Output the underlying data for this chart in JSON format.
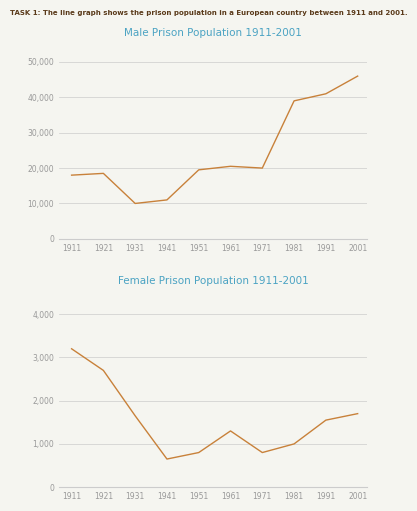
{
  "task_label": "TASK 1: The line graph shows the prison population in a European country between 1911 and 2001.",
  "years": [
    1911,
    1921,
    1931,
    1941,
    1951,
    1961,
    1971,
    1981,
    1991,
    2001
  ],
  "male_values": [
    18000,
    18500,
    10000,
    11000,
    19500,
    20500,
    20000,
    39000,
    41000,
    46000
  ],
  "female_values": [
    3200,
    2700,
    1650,
    650,
    800,
    1300,
    800,
    1000,
    1550,
    1700
  ],
  "male_title": "Male Prison Population 1911-2001",
  "female_title": "Female Prison Population 1911-2001",
  "line_color": "#C8813A",
  "title_color": "#4BA3C3",
  "task_label_color": "#5a3a1a",
  "male_ylim": [
    0,
    55000
  ],
  "male_yticks": [
    0,
    10000,
    20000,
    30000,
    40000,
    50000
  ],
  "female_ylim": [
    0,
    4500
  ],
  "female_yticks": [
    0,
    1000,
    2000,
    3000,
    4000
  ],
  "bg_color": "#f5f5f0",
  "grid_color": "#cccccc",
  "tick_color": "#999999"
}
